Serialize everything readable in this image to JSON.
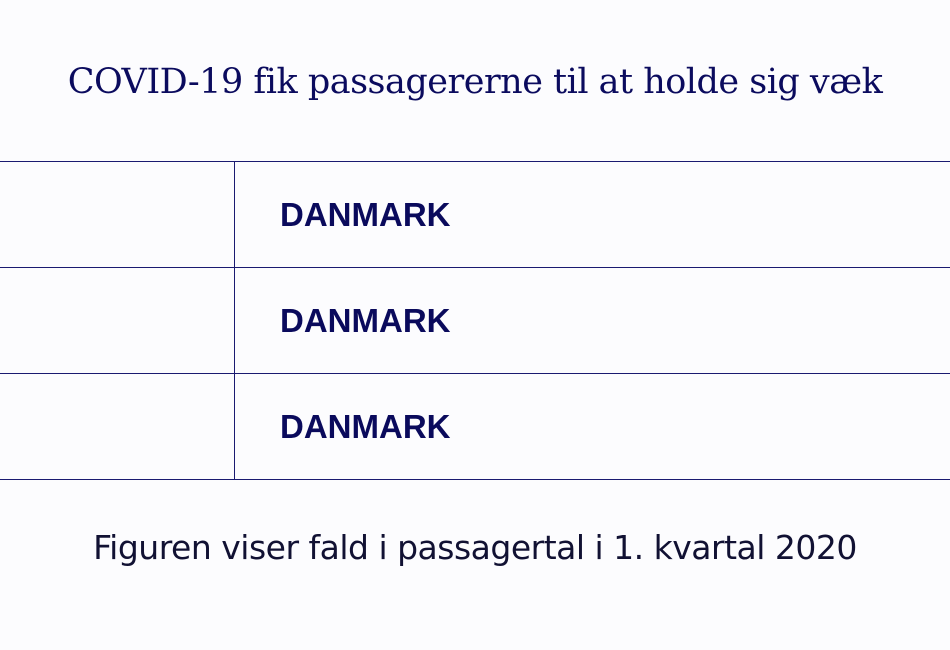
{
  "title": "COVID-19 fik passagererne til at holde sig væk",
  "rows": [
    {
      "label": "",
      "value": "DANMARK"
    },
    {
      "label": "",
      "value": "DANMARK"
    },
    {
      "label": "",
      "value": "DANMARK"
    }
  ],
  "caption": "Figuren viser fald i passagertal i 1. kvartal 2020"
}
